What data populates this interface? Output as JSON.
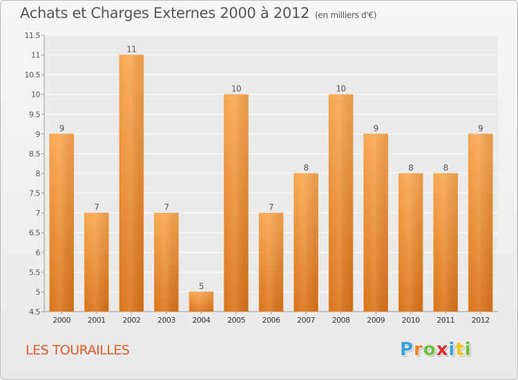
{
  "title": "Achats et Charges Externes 2000 à 2012",
  "unit_note": "(en milliers d'€)",
  "place": "LES TOURAILLES",
  "brand": {
    "letters": [
      "P",
      "r",
      "o",
      "x",
      "i",
      "t",
      "i"
    ],
    "colors": [
      "#39a0d8",
      "#f07f1c",
      "#6cbd3b",
      "#e52c2c",
      "#39a0d8",
      "#f0c419",
      "#6cbd3b"
    ]
  },
  "colors": {
    "bar_top": "#f8a750",
    "bar_bottom": "#d97318",
    "label": "#f07a2a",
    "text": "#555555",
    "grid": "#ffffff"
  },
  "chart_data": {
    "type": "bar",
    "categories": [
      "2000",
      "2001",
      "2002",
      "2003",
      "2004",
      "2005",
      "2006",
      "2007",
      "2008",
      "2009",
      "2010",
      "2011",
      "2012"
    ],
    "values": [
      9,
      7,
      11,
      7,
      5,
      10,
      7,
      8,
      10,
      9,
      8,
      8,
      9
    ],
    "value_labels": [
      "9",
      "7",
      "11",
      "7",
      "5",
      "10",
      "7",
      "8",
      "10",
      "9",
      "8",
      "8",
      "9"
    ],
    "title": "Achats et Charges Externes 2000 à 2012",
    "xlabel": "",
    "ylabel": "",
    "ylim": [
      4.5,
      11.5
    ],
    "yticks": [
      4.5,
      5,
      5.5,
      6,
      6.5,
      7,
      7.5,
      8,
      8.5,
      9,
      9.5,
      10,
      10.5,
      11,
      11.5
    ],
    "ytick_labels": [
      "4.5",
      "5",
      "5.5",
      "6",
      "6.5",
      "7",
      "7.5",
      "8",
      "8.5",
      "9",
      "9.5",
      "10",
      "10.5",
      "11",
      "11.5"
    ],
    "grid": true
  }
}
